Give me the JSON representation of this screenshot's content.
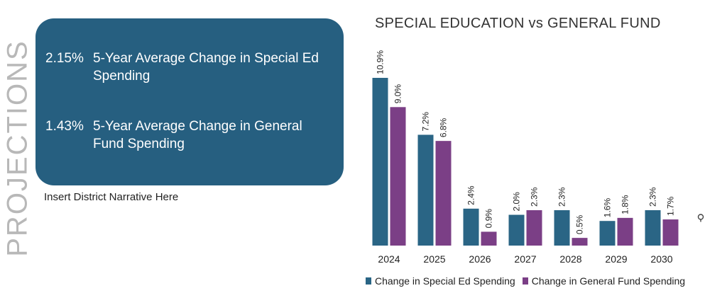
{
  "side_title": "PROJECTIONS",
  "stats": [
    {
      "value": "2.15%",
      "label": "5-Year Average Change in Special Ed Spending"
    },
    {
      "value": "1.43%",
      "label": "5-Year Average Change in General Fund Spending"
    }
  ],
  "narrative": "Insert District Narrative Here",
  "colors": {
    "card": "#265f80",
    "special_ed": "#2a6585",
    "general_fund": "#7b3f86"
  },
  "icons": {
    "magnify": "magnify-icon"
  },
  "chart_data": {
    "type": "bar",
    "title": "SPECIAL EDUCATION vs GENERAL FUND",
    "xlabel": "",
    "ylabel": "",
    "ylim": [
      0,
      11.5
    ],
    "categories": [
      "2024",
      "2025",
      "2026",
      "2027",
      "2028",
      "2029",
      "2030"
    ],
    "series": [
      {
        "name": "Change in Special Ed Spending",
        "color": "#2a6585",
        "values": [
          10.9,
          7.2,
          2.4,
          2.0,
          2.3,
          1.6,
          2.3
        ],
        "labels": [
          "10.9%",
          "7.2%",
          "2.4%",
          "2.0%",
          "2.3%",
          "1.6%",
          "2.3%"
        ]
      },
      {
        "name": "Change in General Fund Spending",
        "color": "#7b3f86",
        "values": [
          9.0,
          6.8,
          0.9,
          2.3,
          0.5,
          1.8,
          1.7
        ],
        "labels": [
          "9.0%",
          "6.8%",
          "0.9%",
          "2.3%",
          "0.5%",
          "1.8%",
          "1.7%"
        ]
      }
    ],
    "grid": false,
    "legend": "bottom"
  }
}
